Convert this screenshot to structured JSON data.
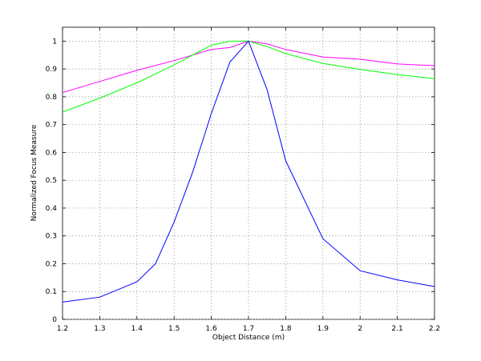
{
  "chart_data": {
    "type": "line",
    "title": "",
    "xlabel": "Object Distance (m)",
    "ylabel": "Normalized Focus Measure",
    "xlim": [
      1.2,
      2.2
    ],
    "ylim": [
      0,
      1.05
    ],
    "xticks": [
      "1.2",
      "1.3",
      "1.4",
      "1.5",
      "1.6",
      "1.7",
      "1.8",
      "1.9",
      "2",
      "2.1",
      "2.2"
    ],
    "yticks": [
      "0",
      "0.1",
      "0.2",
      "0.3",
      "0.4",
      "0.5",
      "0.6",
      "0.7",
      "0.8",
      "0.9",
      "1"
    ],
    "grid": true,
    "legend": "none",
    "series": [
      {
        "color": "#ff00ff",
        "x": [
          1.2,
          1.3,
          1.4,
          1.5,
          1.6,
          1.65,
          1.7,
          1.75,
          1.8,
          1.9,
          2.0,
          2.1,
          2.2
        ],
        "y": [
          0.815,
          0.855,
          0.895,
          0.93,
          0.97,
          0.977,
          1.0,
          0.99,
          0.97,
          0.943,
          0.935,
          0.918,
          0.912
        ]
      },
      {
        "color": "#00ff00",
        "x": [
          1.2,
          1.3,
          1.4,
          1.5,
          1.6,
          1.65,
          1.7,
          1.75,
          1.8,
          1.9,
          2.0,
          2.1,
          2.2
        ],
        "y": [
          0.745,
          0.795,
          0.85,
          0.915,
          0.985,
          1.0,
          1.0,
          0.98,
          0.955,
          0.92,
          0.898,
          0.88,
          0.865
        ]
      },
      {
        "color": "#0000ff",
        "x": [
          1.2,
          1.3,
          1.4,
          1.45,
          1.5,
          1.55,
          1.6,
          1.65,
          1.7,
          1.75,
          1.8,
          1.9,
          2.0,
          2.1,
          2.2
        ],
        "y": [
          0.062,
          0.08,
          0.135,
          0.2,
          0.35,
          0.53,
          0.74,
          0.925,
          1.0,
          0.825,
          0.57,
          0.29,
          0.175,
          0.142,
          0.118
        ]
      }
    ]
  }
}
